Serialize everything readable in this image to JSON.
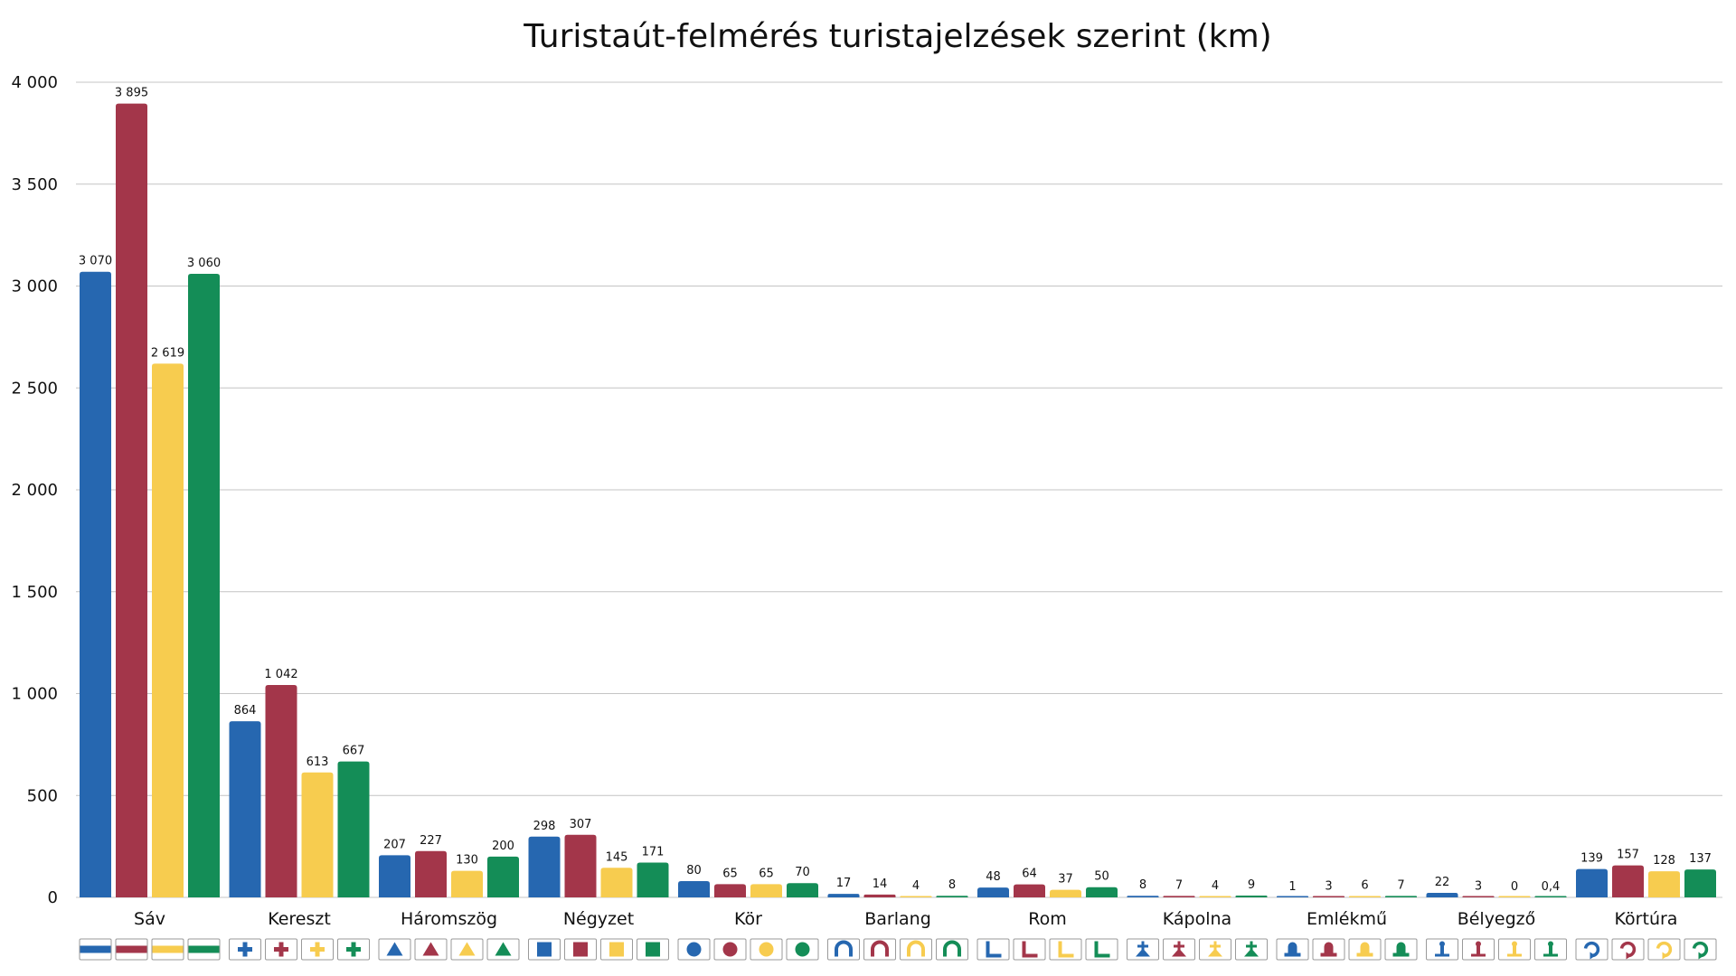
{
  "chart_data": {
    "type": "bar",
    "title": "Turistaút-felmérés turistajelzések szerint (km)",
    "xlabel": "",
    "ylabel": "",
    "ylim": [
      0,
      4000
    ],
    "yticks": [
      0,
      500,
      1000,
      1500,
      2000,
      2500,
      3000,
      3500,
      4000
    ],
    "ytick_labels": [
      "0",
      "500",
      "1 000",
      "1 500",
      "2 000",
      "2 500",
      "3 000",
      "3 500",
      "4 000"
    ],
    "grid": true,
    "legend": "none",
    "categories": [
      "Sáv",
      "Kereszt",
      "Háromszög",
      "Négyzet",
      "Kör",
      "Barlang",
      "Rom",
      "Kápolna",
      "Emlékmű",
      "Bélyegző",
      "Körtúra"
    ],
    "series": [
      {
        "color": "#2667b0",
        "values": [
          3070,
          864,
          207,
          298,
          80,
          17,
          48,
          8,
          1,
          22,
          139
        ],
        "labels": [
          "3 070",
          "864",
          "207",
          "298",
          "80",
          "17",
          "48",
          "8",
          "1",
          "22",
          "139"
        ]
      },
      {
        "color": "#a3364a",
        "values": [
          3895,
          1042,
          227,
          307,
          65,
          14,
          64,
          7,
          3,
          3,
          157
        ],
        "labels": [
          "3 895",
          "1 042",
          "227",
          "307",
          "65",
          "14",
          "64",
          "7",
          "3",
          "3",
          "157"
        ]
      },
      {
        "color": "#f7cc4f",
        "values": [
          2619,
          613,
          130,
          145,
          65,
          4,
          37,
          4,
          6,
          0,
          128
        ],
        "labels": [
          "2 619",
          "613",
          "130",
          "145",
          "65",
          "4",
          "37",
          "4",
          "6",
          "0",
          "128"
        ]
      },
      {
        "color": "#148d57",
        "values": [
          3060,
          667,
          200,
          171,
          70,
          8,
          50,
          9,
          7,
          0.4,
          137
        ],
        "labels": [
          "3 060",
          "667",
          "200",
          "171",
          "70",
          "8",
          "50",
          "9",
          "7",
          "0,4",
          "137"
        ]
      }
    ],
    "marker_icons": [
      "band-mark",
      "cross-mark",
      "triangle-mark",
      "square-mark",
      "circle-mark",
      "cave-mark",
      "ruin-mark",
      "chapel-mark",
      "monument-mark",
      "stamp-mark",
      "loop-mark"
    ]
  }
}
